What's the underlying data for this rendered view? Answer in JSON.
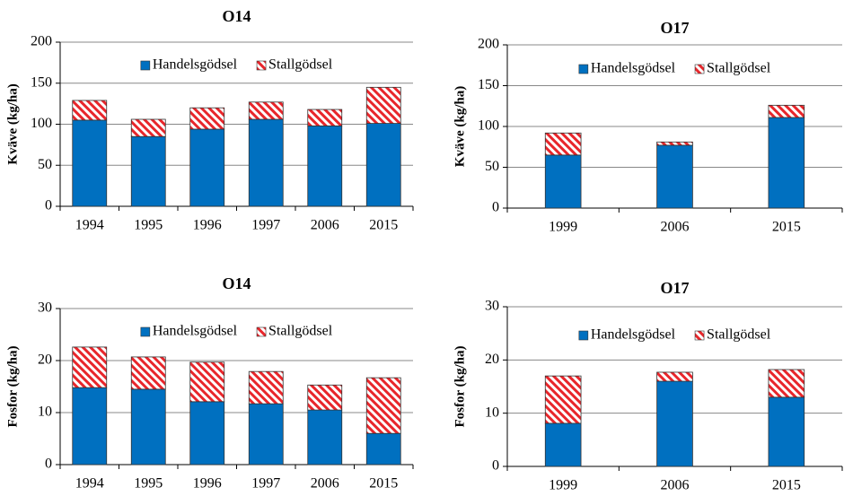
{
  "chart_data": [
    {
      "type": "bar",
      "stacked": true,
      "title": "O14",
      "y_label": "Kväve (kg/ha)",
      "categories": [
        "1994",
        "1995",
        "1996",
        "1997",
        "2006",
        "2015"
      ],
      "series": [
        {
          "name": "Handelsgödsel",
          "color": "#0070c0",
          "values": [
            105,
            85,
            94,
            106,
            98,
            101
          ]
        },
        {
          "name": "Stallgödsel",
          "color": "#e8262b",
          "pattern": "hatch",
          "values": [
            24,
            21,
            26,
            21,
            20,
            44
          ]
        }
      ],
      "ylim": [
        0,
        200
      ],
      "yticks": [
        0,
        50,
        100,
        150,
        200
      ],
      "grid": true,
      "legend": "top"
    },
    {
      "type": "bar",
      "stacked": true,
      "title": "O17",
      "y_label": "Kväve (kg/ha)",
      "categories": [
        "1999",
        "2006",
        "2015"
      ],
      "series": [
        {
          "name": "Handelsgödsel",
          "color": "#0070c0",
          "values": [
            65,
            77,
            111
          ]
        },
        {
          "name": "Stallgödsel",
          "color": "#e8262b",
          "pattern": "hatch",
          "values": [
            27,
            4,
            15
          ]
        }
      ],
      "ylim": [
        0,
        200
      ],
      "yticks": [
        0,
        50,
        100,
        150,
        200
      ],
      "grid": true,
      "legend": "top"
    },
    {
      "type": "bar",
      "stacked": true,
      "title": "O14",
      "y_label": "Fosfor (kg/ha)",
      "categories": [
        "1994",
        "1995",
        "1996",
        "1997",
        "2006",
        "2015"
      ],
      "series": [
        {
          "name": "Handelsgödsel",
          "color": "#0070c0",
          "values": [
            14.8,
            14.5,
            12.1,
            11.7,
            10.5,
            6
          ]
        },
        {
          "name": "Stallgödsel",
          "color": "#e8262b",
          "pattern": "hatch",
          "values": [
            7.8,
            6.2,
            7.6,
            6.2,
            4.8,
            10.7
          ]
        }
      ],
      "ylim": [
        0,
        30
      ],
      "yticks": [
        0,
        10,
        20,
        30
      ],
      "grid": true,
      "legend": "top"
    },
    {
      "type": "bar",
      "stacked": true,
      "title": "O17",
      "y_label": "Fosfor (kg/ha)",
      "categories": [
        "1999",
        "2006",
        "2015"
      ],
      "series": [
        {
          "name": "Handelsgödsel",
          "color": "#0070c0",
          "values": [
            8.1,
            16,
            13
          ]
        },
        {
          "name": "Stallgödsel",
          "color": "#e8262b",
          "pattern": "hatch",
          "values": [
            8.9,
            1.7,
            5.2
          ]
        }
      ],
      "ylim": [
        0,
        30
      ],
      "yticks": [
        0,
        10,
        20,
        30
      ],
      "grid": true,
      "legend": "top"
    }
  ]
}
